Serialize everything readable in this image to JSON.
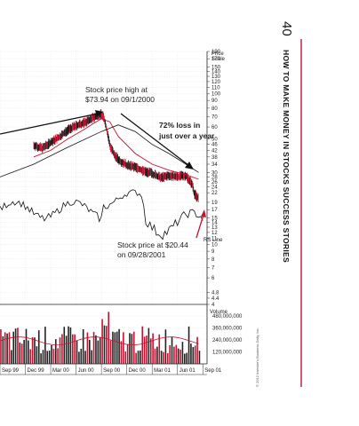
{
  "page": {
    "page_number": "40",
    "book_title": "HOW TO MAKE MONEY IN STOCKS SUCCESS STORIES",
    "copyright": "© 2012 Investor's Business Daily, Inc.",
    "accent_color": "#c8102e"
  },
  "chart_data": {
    "type": "line",
    "price_scale_label_1": "Price",
    "price_scale_label_2": "Scale",
    "price_ticks": [
      190,
      170,
      150,
      140,
      130,
      120,
      110,
      100,
      90,
      80,
      70,
      60,
      50,
      46,
      42,
      38,
      34,
      30,
      28,
      26,
      24,
      22,
      19,
      17,
      15,
      14,
      13,
      12,
      11,
      10,
      9,
      8,
      7,
      6,
      4.8,
      4.4,
      4.0
    ],
    "price_range": [
      4.0,
      190
    ],
    "log_scale": true,
    "volume_label": "Volume",
    "volume_ticks": [
      "480,000,000",
      "360,000,000",
      "240,000,000",
      "120,000,000"
    ],
    "volume_range": [
      0,
      560000000
    ],
    "x_labels": [
      "Sep 99",
      "Dec 99",
      "Mar 00",
      "Jun 00",
      "Sep 00",
      "Dec 00",
      "Mar 01",
      "Jun 01",
      "Sep 01"
    ],
    "x_range": [
      0,
      24.5
    ],
    "price_series": {
      "x": [
        4,
        5,
        6,
        7,
        8,
        9,
        10,
        11,
        12,
        12.3,
        12.6,
        13,
        13.5,
        14,
        15,
        16,
        17,
        18,
        19,
        20,
        21,
        22,
        22.4,
        22.8,
        23,
        23.5
      ],
      "close": [
        46,
        44,
        48,
        52,
        58,
        62,
        65,
        70,
        73.94,
        70,
        60,
        46,
        40,
        37,
        34,
        33,
        31,
        30,
        28,
        29,
        28.5,
        29,
        27,
        25,
        22,
        20.44
      ]
    },
    "moving_average_50": {
      "x": [
        4,
        6,
        8,
        10,
        11,
        12,
        13,
        14,
        16,
        18,
        20,
        22,
        23.5
      ],
      "values": [
        38,
        42,
        50,
        58,
        63,
        68,
        65,
        52,
        40,
        34,
        31,
        29,
        27
      ]
    },
    "moving_average_200": {
      "x": [
        0,
        4,
        8,
        12,
        14,
        16,
        18,
        20,
        22,
        23.5
      ],
      "values": [
        28,
        34,
        44,
        56,
        62,
        56,
        46,
        40,
        34,
        30
      ]
    },
    "rs_line_label": "RS Line",
    "annotations": [
      {
        "text_1": "Stock price high at",
        "text_2": "$73.94 on 09/1/2000"
      },
      {
        "text_1": "72% loss in",
        "text_2": "just over a year"
      },
      {
        "text_1": "Stock price at $20.44",
        "text_2": "on 09/28/2001"
      }
    ],
    "grid": true
  }
}
